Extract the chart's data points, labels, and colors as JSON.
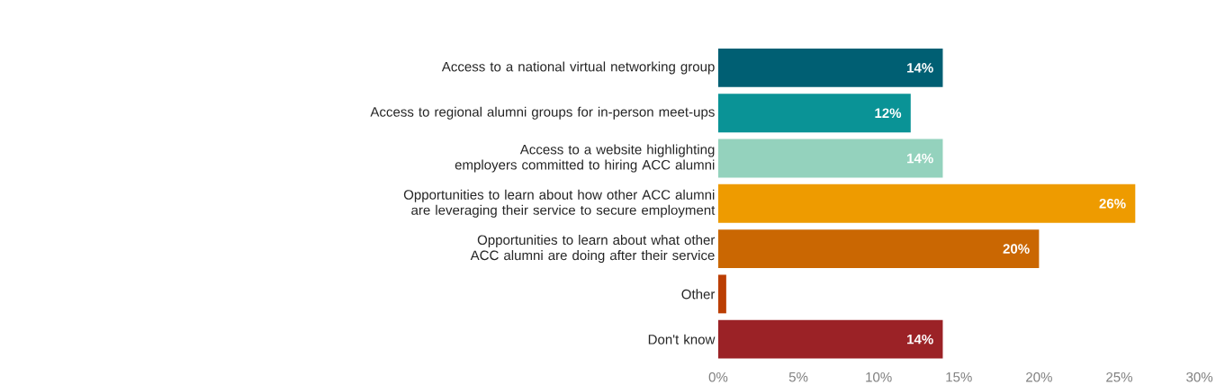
{
  "chart_data": {
    "type": "bar",
    "orientation": "horizontal",
    "categories": [
      "Access to a national virtual networking group",
      "Access to regional alumni groups for in-person meet-ups",
      "Access to a website highlighting employers committed to hiring ACC alumni",
      "Opportunities to learn about how other ACC alumni are leveraging their service to secure employment",
      "Opportunities to learn about what other ACC alumni are doing after their service",
      "Other",
      "Don't know"
    ],
    "values": [
      14,
      12,
      14,
      26,
      20,
      0.5,
      14
    ],
    "value_labels": [
      "14%",
      "12%",
      "14%",
      "26%",
      "20%",
      null,
      "14%"
    ],
    "colors": [
      "#005f73",
      "#0a9396",
      "#94d2bd",
      "#ee9b00",
      "#ca6702",
      "#bb3e03",
      "#9b2226"
    ],
    "xlim": [
      0,
      30
    ],
    "xticks": [
      {
        "value": 0,
        "label": "0%"
      },
      {
        "value": 5,
        "label": "5%"
      },
      {
        "value": 10,
        "label": "10%"
      },
      {
        "value": 15,
        "label": "15%"
      },
      {
        "value": 20,
        "label": "20%"
      },
      {
        "value": 25,
        "label": "25%"
      },
      {
        "value": 30,
        "label": "30%"
      }
    ]
  }
}
